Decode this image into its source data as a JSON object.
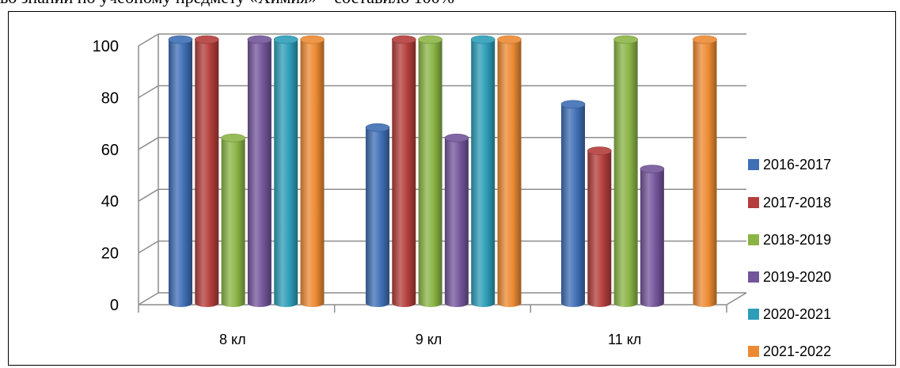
{
  "caption": "во знаний по учебному предмету «Химия» – составило 100%",
  "chart_data": {
    "type": "bar",
    "categories": [
      "8 кл",
      "9 кл",
      "11 кл"
    ],
    "series": [
      {
        "name": "2016-2017",
        "values": [
          100,
          66,
          75
        ],
        "color": "#3F6FB5"
      },
      {
        "name": "2017-2018",
        "values": [
          100,
          100,
          57
        ],
        "color": "#B33E3B"
      },
      {
        "name": "2018-2019",
        "values": [
          62,
          100,
          100
        ],
        "color": "#8BB446"
      },
      {
        "name": "2019-2020",
        "values": [
          100,
          62,
          50
        ],
        "color": "#73559A"
      },
      {
        "name": "2020-2021",
        "values": [
          100,
          100,
          null
        ],
        "color": "#2E9DB8"
      },
      {
        "name": "2021-2022",
        "values": [
          100,
          100,
          100
        ],
        "color": "#EC8A33"
      }
    ],
    "yticks": [
      0,
      20,
      40,
      60,
      80,
      100
    ],
    "ylim": [
      0,
      100
    ],
    "grid": true,
    "legend_position": "right"
  }
}
